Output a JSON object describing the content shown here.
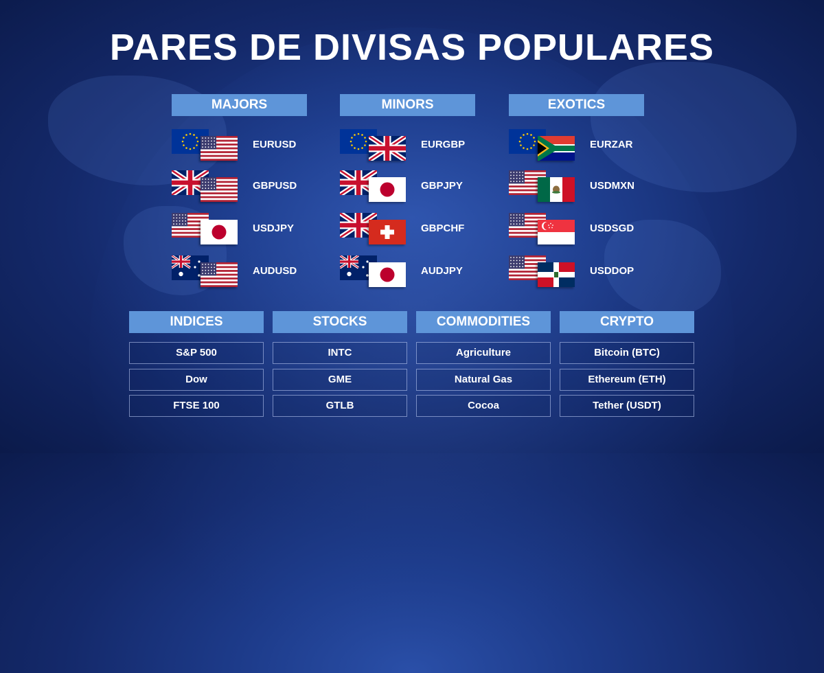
{
  "title": "PARES DE DIVISAS POPULARES",
  "columns": [
    {
      "label": "MAJORS",
      "pairs": [
        {
          "code": "EURUSD",
          "base": "eu",
          "quote": "us"
        },
        {
          "code": "GBPUSD",
          "base": "gb",
          "quote": "us"
        },
        {
          "code": "USDJPY",
          "base": "us",
          "quote": "jp"
        },
        {
          "code": "AUDUSD",
          "base": "au",
          "quote": "us"
        }
      ]
    },
    {
      "label": "MINORS",
      "pairs": [
        {
          "code": "EURGBP",
          "base": "eu",
          "quote": "gb"
        },
        {
          "code": "GBPJPY",
          "base": "gb",
          "quote": "jp"
        },
        {
          "code": "GBPCHF",
          "base": "gb",
          "quote": "ch"
        },
        {
          "code": "AUDJPY",
          "base": "au",
          "quote": "jp"
        }
      ]
    },
    {
      "label": "EXOTICS",
      "pairs": [
        {
          "code": "EURZAR",
          "base": "eu",
          "quote": "za"
        },
        {
          "code": "USDMXN",
          "base": "us",
          "quote": "mx"
        },
        {
          "code": "USDSGD",
          "base": "us",
          "quote": "sg"
        },
        {
          "code": "USDDOP",
          "base": "us",
          "quote": "do"
        }
      ]
    }
  ],
  "categories": [
    {
      "label": "INDICES",
      "items": [
        "S&P 500",
        "Dow",
        "FTSE 100"
      ]
    },
    {
      "label": "STOCKS",
      "items": [
        "INTC",
        "GME",
        "GTLB"
      ]
    },
    {
      "label": "COMMODITIES",
      "items": [
        "Agriculture",
        "Natural Gas",
        "Cocoa"
      ]
    },
    {
      "label": "CRYPTO",
      "items": [
        "Bitcoin (BTC)",
        "Ethereum (ETH)",
        "Tether (USDT)"
      ]
    }
  ],
  "colors": {
    "accent": "#5e95d9",
    "background": "#14296a"
  }
}
